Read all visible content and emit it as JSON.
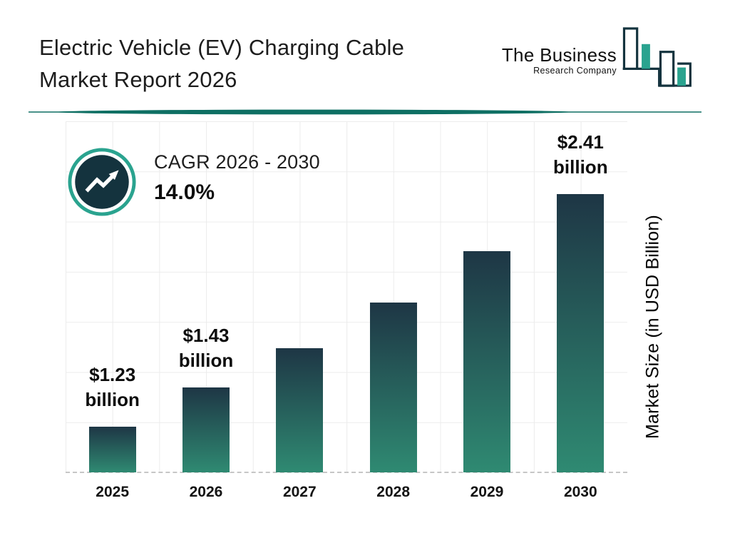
{
  "header": {
    "title_line1": "Electric Vehicle (EV) Charging Cable",
    "title_line2": "Market Report 2026"
  },
  "logo": {
    "name": "The Business",
    "subtitle": "Research Company",
    "icon": "bar-chart-logo-icon"
  },
  "cagr_badge": {
    "label": "CAGR 2026 - 2030",
    "value": "14.0%",
    "icon": "trend-up-arrow-icon"
  },
  "chart_data": {
    "type": "bar",
    "title": "Electric Vehicle (EV) Charging Cable Market Report 2026",
    "categories": [
      "2025",
      "2026",
      "2027",
      "2028",
      "2029",
      "2030"
    ],
    "values": [
      1.23,
      1.43,
      1.63,
      1.86,
      2.12,
      2.41
    ],
    "unit": "USD Billion",
    "xlabel": "",
    "ylabel": "Market Size (in USD Billion)",
    "ylim": [
      1.0,
      2.41
    ],
    "grid": true,
    "legend": false,
    "bar_labels": [
      {
        "amount": "$1.23",
        "unit": "billion"
      },
      {
        "amount": "$1.43",
        "unit": "billion"
      },
      null,
      null,
      null,
      {
        "amount": "$2.41",
        "unit": "billion"
      }
    ],
    "cagr": "14.0%",
    "cagr_period": "2026 - 2030",
    "colors": {
      "bar_gradient_top": "#1e3645",
      "bar_gradient_bottom": "#2f8a72",
      "accent_teal": "#2aa38f",
      "dark_navy": "#14333e",
      "divider": "#0e6f63"
    }
  }
}
